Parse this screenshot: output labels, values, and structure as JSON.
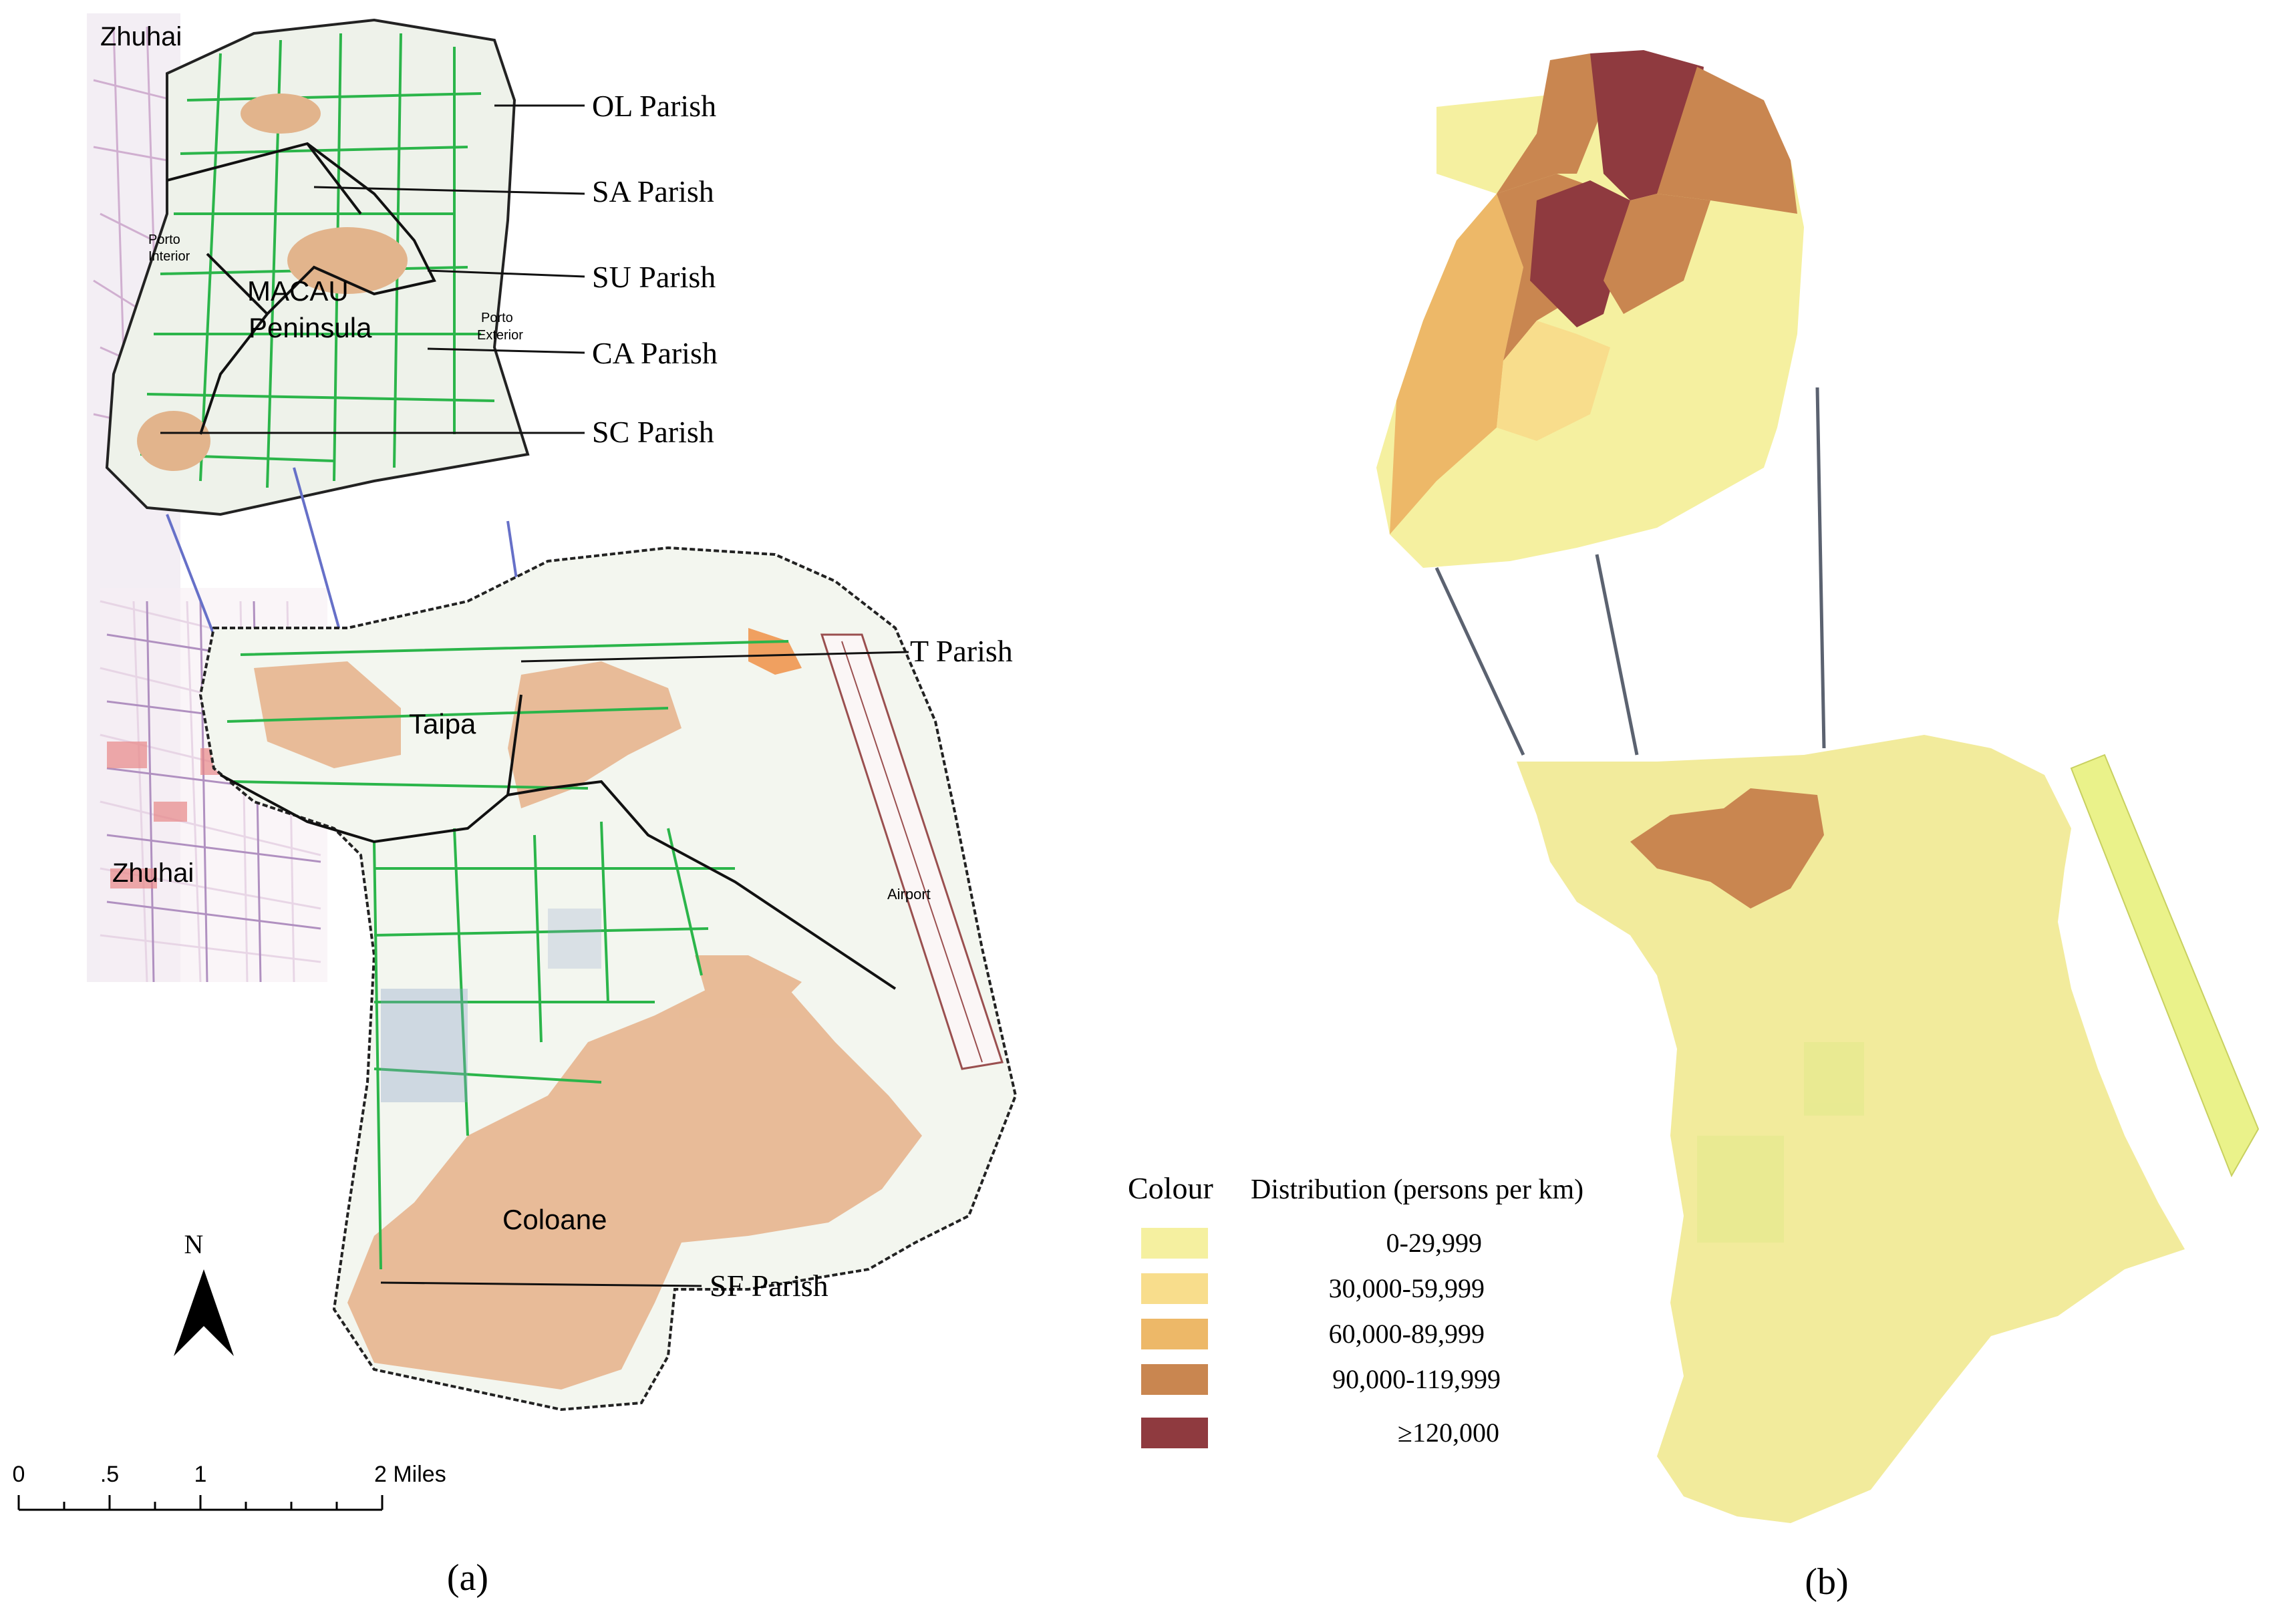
{
  "panel_a": {
    "caption": "(a)",
    "places": {
      "zhuhai_top": "Zhuhai",
      "zhuhai_mid": "Zhuhai",
      "porto_interior_1": "Porto",
      "porto_interior_2": "Interior",
      "porto_exterior_1": "Porto",
      "porto_exterior_2": "Exterior",
      "macau_1": "MACAU",
      "macau_2": "Peninsula",
      "taipa": "Taipa",
      "coloane": "Coloane",
      "airport": "Airport"
    },
    "parishes": [
      "OL Parish",
      "SA Parish",
      "SU Parish",
      "CA Parish",
      "SC Parish",
      "T Parish",
      "SF Parish"
    ],
    "north_arrow": "N",
    "scale_bar": [
      "0",
      ".5",
      "1",
      "2 Miles"
    ]
  },
  "panel_b": {
    "caption": "(b)",
    "legend": {
      "title_colour": "Colour",
      "title_distribution": "Distribution (persons per km)",
      "classes": [
        {
          "label": "0-29,999",
          "color": "#f5f0a0"
        },
        {
          "label": "30,000-59,999",
          "color": "#f8dd8c"
        },
        {
          "label": "60,000-89,999",
          "color": "#edb868"
        },
        {
          "label": "90,000-119,999",
          "color": "#c98650"
        },
        {
          "label": "≥120,000",
          "color": "#8f3a3f"
        }
      ]
    }
  }
}
